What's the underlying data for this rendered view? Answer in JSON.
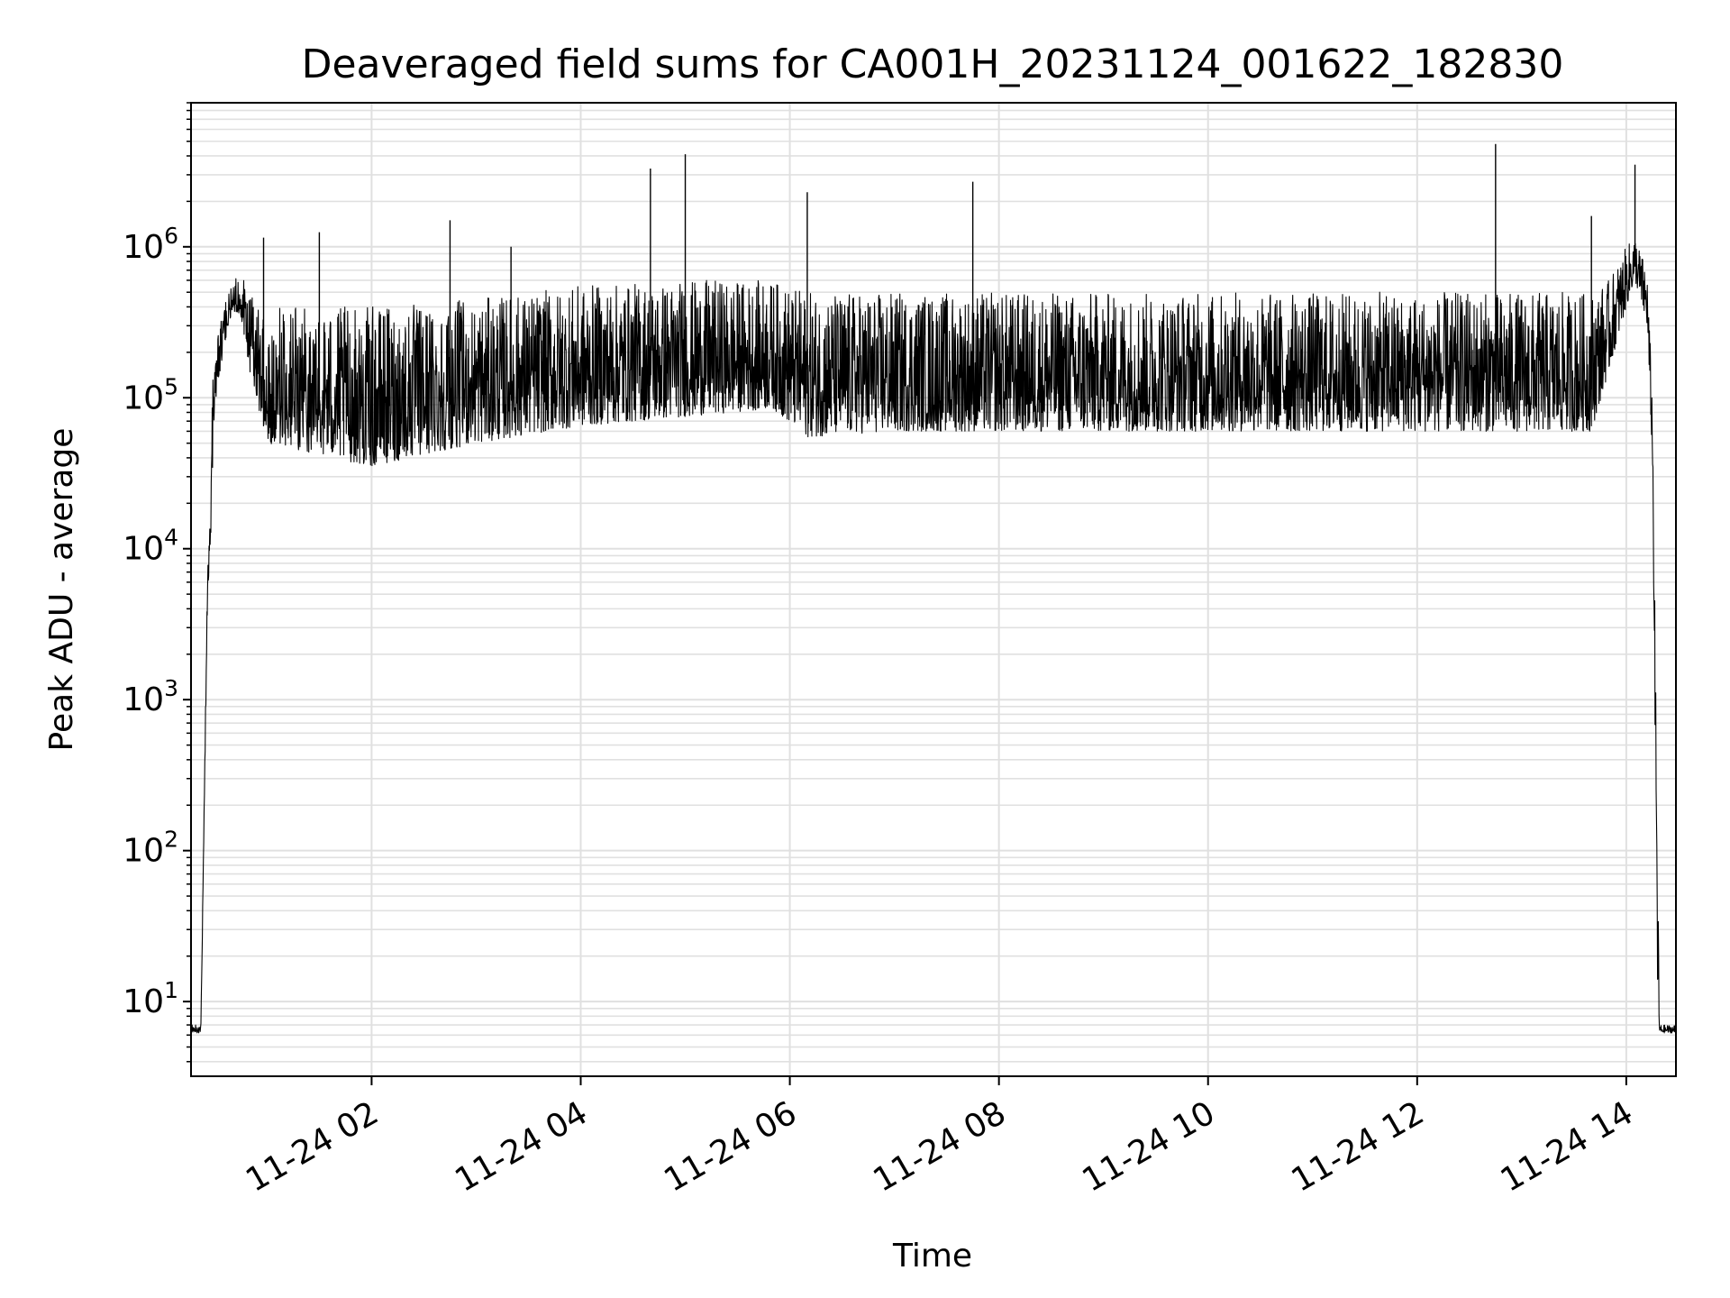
{
  "chart_data": {
    "type": "line",
    "title": "Deaveraged field sums for CA001H_20231124_001622_182830",
    "xlabel": "Time",
    "ylabel": "Peak ADU - average",
    "yscale": "log",
    "ylim": [
      3.2,
      9000000
    ],
    "xlim": [
      "2023-11-24 00:16:22",
      "2023-11-24 14:28:30"
    ],
    "x_ticks": [
      {
        "t": "2023-11-24 02:00",
        "label": "11-24 02"
      },
      {
        "t": "2023-11-24 04:00",
        "label": "11-24 04"
      },
      {
        "t": "2023-11-24 06:00",
        "label": "11-24 06"
      },
      {
        "t": "2023-11-24 08:00",
        "label": "11-24 08"
      },
      {
        "t": "2023-11-24 10:00",
        "label": "11-24 10"
      },
      {
        "t": "2023-11-24 12:00",
        "label": "11-24 12"
      },
      {
        "t": "2023-11-24 14:00",
        "label": "11-24 14"
      }
    ],
    "y_ticks": [
      {
        "value": 10,
        "base": "10",
        "exp": "1"
      },
      {
        "value": 100,
        "base": "10",
        "exp": "2"
      },
      {
        "value": 1000,
        "base": "10",
        "exp": "3"
      },
      {
        "value": 10000,
        "base": "10",
        "exp": "4"
      },
      {
        "value": 100000,
        "base": "10",
        "exp": "5"
      },
      {
        "value": 1000000,
        "base": "10",
        "exp": "6"
      }
    ],
    "grid": true,
    "line_color": "#000000",
    "grid_color": "#e0e0e0",
    "series": [
      {
        "envelope": [
          {
            "t": "2023-11-24 00:16:22",
            "low": 6.2,
            "high": 7.0
          },
          {
            "t": "2023-11-24 00:22",
            "low": 6.2,
            "high": 7.0
          },
          {
            "t": "2023-11-24 00:26",
            "low": 6000,
            "high": 10000
          },
          {
            "t": "2023-11-24 00:27",
            "low": 6000,
            "high": 80000
          },
          {
            "t": "2023-11-24 00:30",
            "low": 90000,
            "high": 200000
          },
          {
            "t": "2023-11-24 00:35",
            "low": 200000,
            "high": 400000
          },
          {
            "t": "2023-11-24 00:40",
            "low": 380000,
            "high": 600000
          },
          {
            "t": "2023-11-24 00:45",
            "low": 350000,
            "high": 650000
          },
          {
            "t": "2023-11-24 00:50",
            "low": 150000,
            "high": 500000
          },
          {
            "t": "2023-11-24 01:00",
            "low": 50000,
            "high": 400000
          },
          {
            "t": "2023-11-24 02:00",
            "low": 35000,
            "high": 400000
          },
          {
            "t": "2023-11-24 03:00",
            "low": 50000,
            "high": 450000
          },
          {
            "t": "2023-11-24 04:00",
            "low": 65000,
            "high": 550000
          },
          {
            "t": "2023-11-24 05:00",
            "low": 75000,
            "high": 600000
          },
          {
            "t": "2023-11-24 05:50",
            "low": 85000,
            "high": 600000
          },
          {
            "t": "2023-11-24 06:10",
            "low": 55000,
            "high": 500000
          },
          {
            "t": "2023-11-24 07:00",
            "low": 60000,
            "high": 500000
          },
          {
            "t": "2023-11-24 08:00",
            "low": 60000,
            "high": 500000
          },
          {
            "t": "2023-11-24 10:00",
            "low": 60000,
            "high": 500000
          },
          {
            "t": "2023-11-24 12:00",
            "low": 60000,
            "high": 500000
          },
          {
            "t": "2023-11-24 13:40",
            "low": 60000,
            "high": 500000
          },
          {
            "t": "2023-11-24 13:50",
            "low": 150000,
            "high": 600000
          },
          {
            "t": "2023-11-24 14:00",
            "low": 400000,
            "high": 1000000
          },
          {
            "t": "2023-11-24 14:05",
            "low": 600000,
            "high": 1200000
          },
          {
            "t": "2023-11-24 14:12",
            "low": 300000,
            "high": 700000
          },
          {
            "t": "2023-11-24 14:15",
            "low": 40000,
            "high": 100000
          },
          {
            "t": "2023-11-24 14:18",
            "low": 10,
            "high": 100
          },
          {
            "t": "2023-11-24 14:19",
            "low": 6.2,
            "high": 7.0
          },
          {
            "t": "2023-11-24 14:28:30",
            "low": 6.2,
            "high": 7.0
          }
        ],
        "peaks": [
          {
            "t": "2023-11-24 00:58",
            "value": 1150000
          },
          {
            "t": "2023-11-24 01:30",
            "value": 1250000
          },
          {
            "t": "2023-11-24 02:45",
            "value": 1500000
          },
          {
            "t": "2023-11-24 03:20",
            "value": 1000000
          },
          {
            "t": "2023-11-24 04:40",
            "value": 3300000
          },
          {
            "t": "2023-11-24 05:00",
            "value": 4100000
          },
          {
            "t": "2023-11-24 06:10",
            "value": 2300000
          },
          {
            "t": "2023-11-24 07:45",
            "value": 2700000
          },
          {
            "t": "2023-11-24 12:45",
            "value": 4800000
          },
          {
            "t": "2023-11-24 13:40",
            "value": 1600000
          },
          {
            "t": "2023-11-24 14:05",
            "value": 3500000
          }
        ]
      }
    ]
  }
}
